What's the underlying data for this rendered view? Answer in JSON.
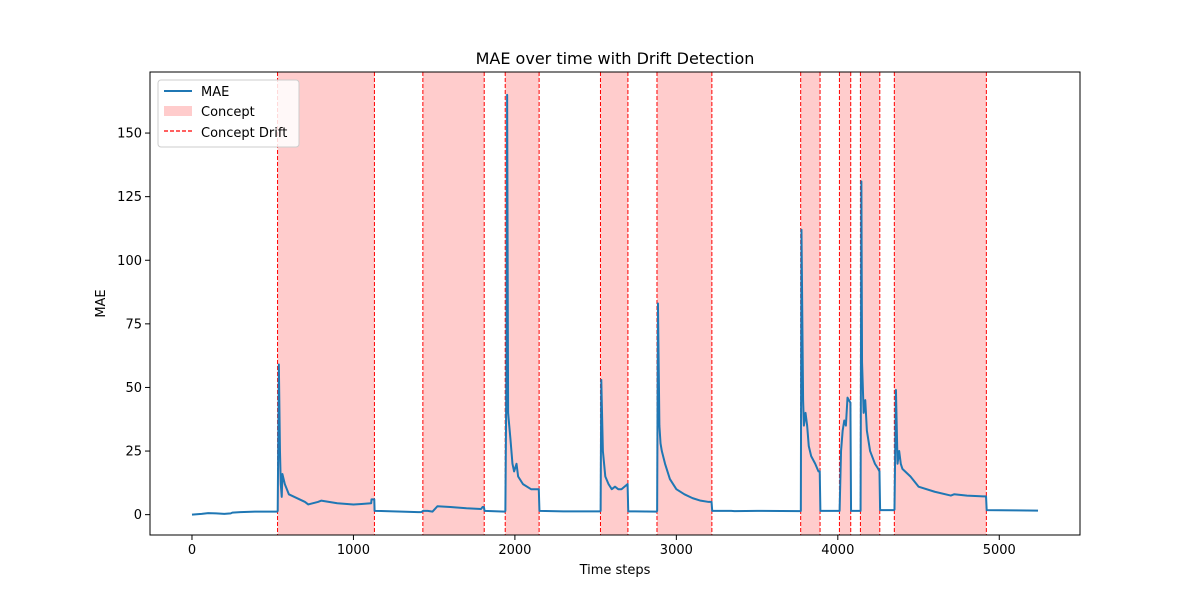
{
  "chart_data": {
    "type": "line",
    "title": "MAE over time with Drift Detection",
    "xlabel": "Time steps",
    "ylabel": "MAE",
    "xlim": [
      -260,
      5500
    ],
    "ylim": [
      -8,
      174
    ],
    "xticks": [
      0,
      1000,
      2000,
      3000,
      4000,
      5000
    ],
    "yticks": [
      0,
      25,
      50,
      75,
      100,
      125,
      150
    ],
    "grid": false,
    "legend_position": "top-left",
    "legend": [
      "MAE",
      "Concept",
      "Concept Drift"
    ],
    "colors": {
      "mae_line": "#1f77b4",
      "concept_fill": "#ffcccc",
      "drift_line": "#ff0000"
    },
    "concept_regions": [
      [
        530,
        1130
      ],
      [
        1430,
        1810
      ],
      [
        1940,
        2150
      ],
      [
        2530,
        2700
      ],
      [
        2880,
        3220
      ],
      [
        3770,
        3890
      ],
      [
        4010,
        4080
      ],
      [
        4140,
        4260
      ],
      [
        4350,
        4920
      ]
    ],
    "drift_lines": [
      530,
      1130,
      1430,
      1810,
      1940,
      2150,
      2530,
      2700,
      2880,
      3220,
      3770,
      3890,
      4010,
      4080,
      4140,
      4260,
      4350,
      4920
    ],
    "series": [
      {
        "name": "MAE",
        "x": [
          0,
          60,
          100,
          150,
          200,
          240,
          250,
          300,
          400,
          528,
          531,
          538,
          545,
          550,
          556,
          560,
          575,
          600,
          700,
          720,
          780,
          800,
          900,
          1000,
          1050,
          1110,
          1112,
          1129,
          1131,
          1300,
          1400,
          1420,
          1432,
          1460,
          1490,
          1520,
          1600,
          1700,
          1790,
          1800,
          1808,
          1812,
          1938,
          1941,
          1948,
          1952,
          1958,
          1965,
          1972,
          1985,
          1995,
          2010,
          2020,
          2050,
          2100,
          2148,
          2152,
          2300,
          2528,
          2531,
          2535,
          2545,
          2560,
          2580,
          2600,
          2620,
          2640,
          2660,
          2698,
          2702,
          2878,
          2881,
          2886,
          2895,
          2902,
          2910,
          2930,
          2960,
          3000,
          3050,
          3100,
          3150,
          3200,
          3218,
          3222,
          3340,
          3360,
          3500,
          3768,
          3771,
          3775,
          3785,
          3790,
          3800,
          3810,
          3820,
          3835,
          3860,
          3880,
          3888,
          3892,
          4008,
          4011,
          4020,
          4030,
          4040,
          4050,
          4060,
          4078,
          4082,
          4138,
          4141,
          4146,
          4150,
          4160,
          4170,
          4180,
          4200,
          4230,
          4250,
          4258,
          4262,
          4348,
          4351,
          4360,
          4370,
          4380,
          4390,
          4400,
          4450,
          4500,
          4600,
          4700,
          4720,
          4800,
          4900,
          4918,
          4922,
          5100,
          5240
        ],
        "y": [
          0,
          0.3,
          0.6,
          0.5,
          0.3,
          0.5,
          0.8,
          1.0,
          1.2,
          1.2,
          1.5,
          59,
          25,
          12,
          7,
          16,
          12,
          8,
          5,
          4,
          5,
          5.5,
          4.5,
          4,
          4.2,
          4.5,
          6,
          6,
          1.5,
          1.2,
          1.0,
          1.0,
          1.5,
          1.5,
          1.2,
          3.3,
          3,
          2.5,
          2.2,
          3,
          3,
          1.5,
          1.2,
          1.5,
          60,
          165,
          40,
          35,
          30,
          20,
          17,
          20,
          15,
          12,
          10,
          10,
          1.5,
          1.3,
          1.3,
          1.5,
          53,
          25,
          15,
          12,
          10,
          11,
          10,
          10,
          12,
          1.3,
          1.2,
          1.5,
          83,
          35,
          28,
          25,
          20,
          14,
          10,
          8,
          6.5,
          5.5,
          5,
          5,
          1.5,
          1.5,
          1.4,
          1.5,
          1.4,
          1.5,
          112,
          45,
          35,
          40,
          35,
          27,
          23,
          20,
          17,
          17,
          1.5,
          1.5,
          1.5,
          25,
          33,
          37,
          35,
          46,
          44,
          1.5,
          1.5,
          1.5,
          131,
          60,
          40,
          45,
          33,
          25,
          20,
          18,
          17,
          1.8,
          1.8,
          2,
          49,
          20,
          25,
          20,
          18,
          15,
          11,
          9,
          7.5,
          8,
          7.5,
          7.2,
          7.2,
          1.8,
          1.7,
          1.6
        ]
      }
    ]
  }
}
